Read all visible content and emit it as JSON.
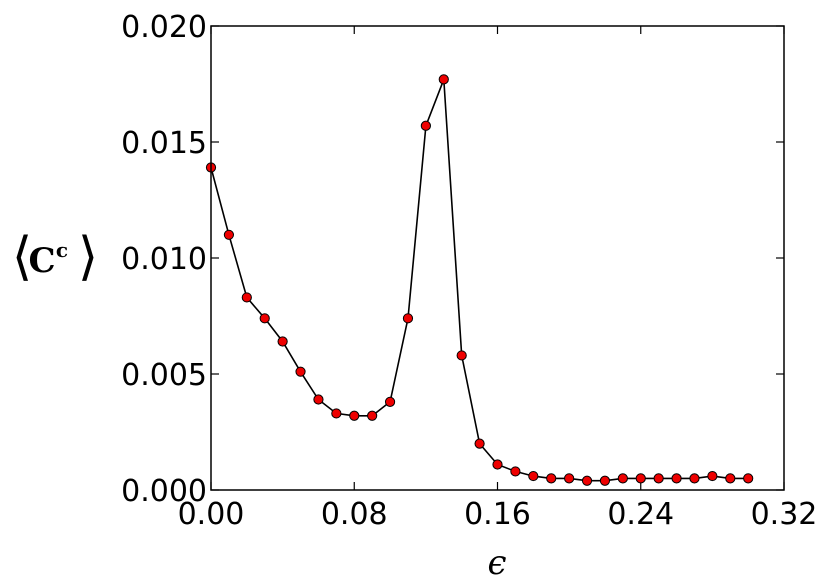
{
  "chart_data": {
    "type": "line",
    "title": "",
    "xlabel": "ϵ",
    "ylabel_parts": {
      "left_bracket": "⟨",
      "symbol": "C",
      "superscript": "c",
      "right_bracket": "⟩"
    },
    "xlim": [
      0.0,
      0.32
    ],
    "ylim": [
      0.0,
      0.02
    ],
    "xticks": [
      0.0,
      0.08,
      0.16,
      0.24,
      0.32
    ],
    "xtick_labels": [
      "0.00",
      "0.08",
      "0.16",
      "0.24",
      "0.32"
    ],
    "yticks": [
      0.0,
      0.005,
      0.01,
      0.015,
      0.02
    ],
    "ytick_labels": [
      "0.000",
      "0.005",
      "0.010",
      "0.015",
      "0.020"
    ],
    "grid": false,
    "line_color": "#000000",
    "marker_color": "#ee0000",
    "marker_edge_color": "#000000",
    "series": [
      {
        "x": [
          0.0,
          0.01,
          0.02,
          0.03,
          0.04,
          0.05,
          0.06,
          0.07,
          0.08,
          0.09,
          0.1,
          0.11,
          0.12,
          0.13,
          0.14,
          0.15,
          0.16,
          0.17,
          0.18,
          0.19,
          0.2,
          0.21,
          0.22,
          0.23,
          0.24,
          0.25,
          0.26,
          0.27,
          0.28,
          0.29,
          0.3
        ],
        "values": [
          0.0139,
          0.011,
          0.0083,
          0.0074,
          0.0064,
          0.0051,
          0.0039,
          0.0033,
          0.0032,
          0.0032,
          0.0038,
          0.0074,
          0.0157,
          0.0177,
          0.0058,
          0.002,
          0.0011,
          0.0008,
          0.0006,
          0.0005,
          0.0005,
          0.0004,
          0.0004,
          0.0005,
          0.0005,
          0.0005,
          0.0005,
          0.0005,
          0.0006,
          0.0005,
          0.0005
        ]
      }
    ]
  }
}
